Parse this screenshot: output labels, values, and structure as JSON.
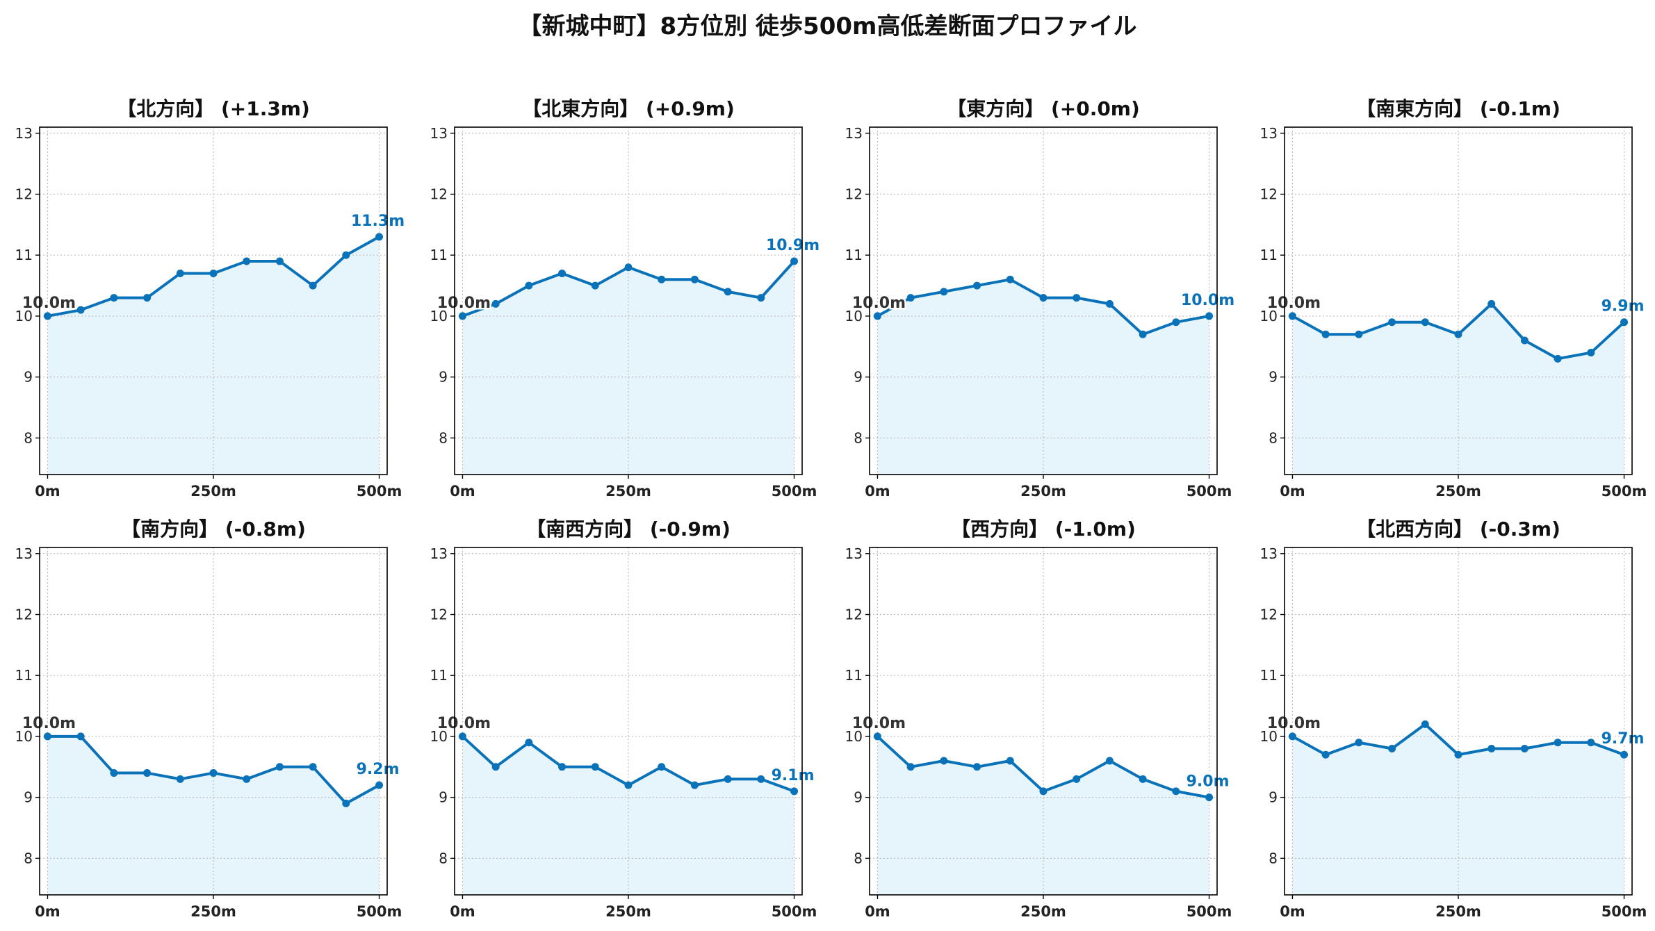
{
  "title": "【新城中町】8方位別 徒歩500m高低差断面プロファイル",
  "colors": {
    "line": "#0a72b9",
    "fill": "#e6f5fb",
    "grid": "#bdbdbd",
    "start_label": "#333333",
    "end_label": "#0a72b9"
  },
  "chart_data": [
    {
      "type": "area",
      "title": "【北方向】 (+1.3m)",
      "x": [
        0,
        50,
        100,
        150,
        200,
        250,
        300,
        350,
        400,
        450,
        500
      ],
      "values": [
        10.0,
        10.1,
        10.3,
        10.3,
        10.7,
        10.7,
        10.9,
        10.9,
        10.5,
        11.0,
        11.3
      ],
      "start_label": "10.0m",
      "end_label": "11.3m",
      "xticks": [
        0,
        250,
        500
      ],
      "xtick_labels": [
        "0m",
        "250m",
        "500m"
      ],
      "yticks": [
        8,
        9,
        10,
        11,
        12,
        13
      ],
      "ylim": [
        7.4,
        13.1
      ],
      "xlim": [
        -12,
        512
      ],
      "grid": true
    },
    {
      "type": "area",
      "title": "【北東方向】 (+0.9m)",
      "x": [
        0,
        50,
        100,
        150,
        200,
        250,
        300,
        350,
        400,
        450,
        500
      ],
      "values": [
        10.0,
        10.2,
        10.5,
        10.7,
        10.5,
        10.8,
        10.6,
        10.6,
        10.4,
        10.3,
        10.9
      ],
      "start_label": "10.0m",
      "end_label": "10.9m",
      "xticks": [
        0,
        250,
        500
      ],
      "xtick_labels": [
        "0m",
        "250m",
        "500m"
      ],
      "yticks": [
        8,
        9,
        10,
        11,
        12,
        13
      ],
      "ylim": [
        7.4,
        13.1
      ],
      "xlim": [
        -12,
        512
      ],
      "grid": true
    },
    {
      "type": "area",
      "title": "【東方向】 (+0.0m)",
      "x": [
        0,
        50,
        100,
        150,
        200,
        250,
        300,
        350,
        400,
        450,
        500
      ],
      "values": [
        10.0,
        10.3,
        10.4,
        10.5,
        10.6,
        10.3,
        10.3,
        10.2,
        9.7,
        9.9,
        10.0
      ],
      "start_label": "10.0m",
      "end_label": "10.0m",
      "xticks": [
        0,
        250,
        500
      ],
      "xtick_labels": [
        "0m",
        "250m",
        "500m"
      ],
      "yticks": [
        8,
        9,
        10,
        11,
        12,
        13
      ],
      "ylim": [
        7.4,
        13.1
      ],
      "xlim": [
        -12,
        512
      ],
      "grid": true
    },
    {
      "type": "area",
      "title": "【南東方向】 (-0.1m)",
      "x": [
        0,
        50,
        100,
        150,
        200,
        250,
        300,
        350,
        400,
        450,
        500
      ],
      "values": [
        10.0,
        9.7,
        9.7,
        9.9,
        9.9,
        9.7,
        10.2,
        9.6,
        9.3,
        9.4,
        9.9
      ],
      "start_label": "10.0m",
      "end_label": "9.9m",
      "xticks": [
        0,
        250,
        500
      ],
      "xtick_labels": [
        "0m",
        "250m",
        "500m"
      ],
      "yticks": [
        8,
        9,
        10,
        11,
        12,
        13
      ],
      "ylim": [
        7.4,
        13.1
      ],
      "xlim": [
        -12,
        512
      ],
      "grid": true
    },
    {
      "type": "area",
      "title": "【南方向】 (-0.8m)",
      "x": [
        0,
        50,
        100,
        150,
        200,
        250,
        300,
        350,
        400,
        450,
        500
      ],
      "values": [
        10.0,
        10.0,
        9.4,
        9.4,
        9.3,
        9.4,
        9.3,
        9.5,
        9.5,
        8.9,
        9.2
      ],
      "start_label": "10.0m",
      "end_label": "9.2m",
      "xticks": [
        0,
        250,
        500
      ],
      "xtick_labels": [
        "0m",
        "250m",
        "500m"
      ],
      "yticks": [
        8,
        9,
        10,
        11,
        12,
        13
      ],
      "ylim": [
        7.4,
        13.1
      ],
      "xlim": [
        -12,
        512
      ],
      "grid": true
    },
    {
      "type": "area",
      "title": "【南西方向】 (-0.9m)",
      "x": [
        0,
        50,
        100,
        150,
        200,
        250,
        300,
        350,
        400,
        450,
        500
      ],
      "values": [
        10.0,
        9.5,
        9.9,
        9.5,
        9.5,
        9.2,
        9.5,
        9.2,
        9.3,
        9.3,
        9.1
      ],
      "start_label": "10.0m",
      "end_label": "9.1m",
      "xticks": [
        0,
        250,
        500
      ],
      "xtick_labels": [
        "0m",
        "250m",
        "500m"
      ],
      "yticks": [
        8,
        9,
        10,
        11,
        12,
        13
      ],
      "ylim": [
        7.4,
        13.1
      ],
      "xlim": [
        -12,
        512
      ],
      "grid": true
    },
    {
      "type": "area",
      "title": "【西方向】 (-1.0m)",
      "x": [
        0,
        50,
        100,
        150,
        200,
        250,
        300,
        350,
        400,
        450,
        500
      ],
      "values": [
        10.0,
        9.5,
        9.6,
        9.5,
        9.6,
        9.1,
        9.3,
        9.6,
        9.3,
        9.1,
        9.0
      ],
      "start_label": "10.0m",
      "end_label": "9.0m",
      "xticks": [
        0,
        250,
        500
      ],
      "xtick_labels": [
        "0m",
        "250m",
        "500m"
      ],
      "yticks": [
        8,
        9,
        10,
        11,
        12,
        13
      ],
      "ylim": [
        7.4,
        13.1
      ],
      "xlim": [
        -12,
        512
      ],
      "grid": true
    },
    {
      "type": "area",
      "title": "【北西方向】 (-0.3m)",
      "x": [
        0,
        50,
        100,
        150,
        200,
        250,
        300,
        350,
        400,
        450,
        500
      ],
      "values": [
        10.0,
        9.7,
        9.9,
        9.8,
        10.2,
        9.7,
        9.8,
        9.8,
        9.9,
        9.9,
        9.7
      ],
      "start_label": "10.0m",
      "end_label": "9.7m",
      "xticks": [
        0,
        250,
        500
      ],
      "xtick_labels": [
        "0m",
        "250m",
        "500m"
      ],
      "yticks": [
        8,
        9,
        10,
        11,
        12,
        13
      ],
      "ylim": [
        7.4,
        13.1
      ],
      "xlim": [
        -12,
        512
      ],
      "grid": true
    }
  ]
}
